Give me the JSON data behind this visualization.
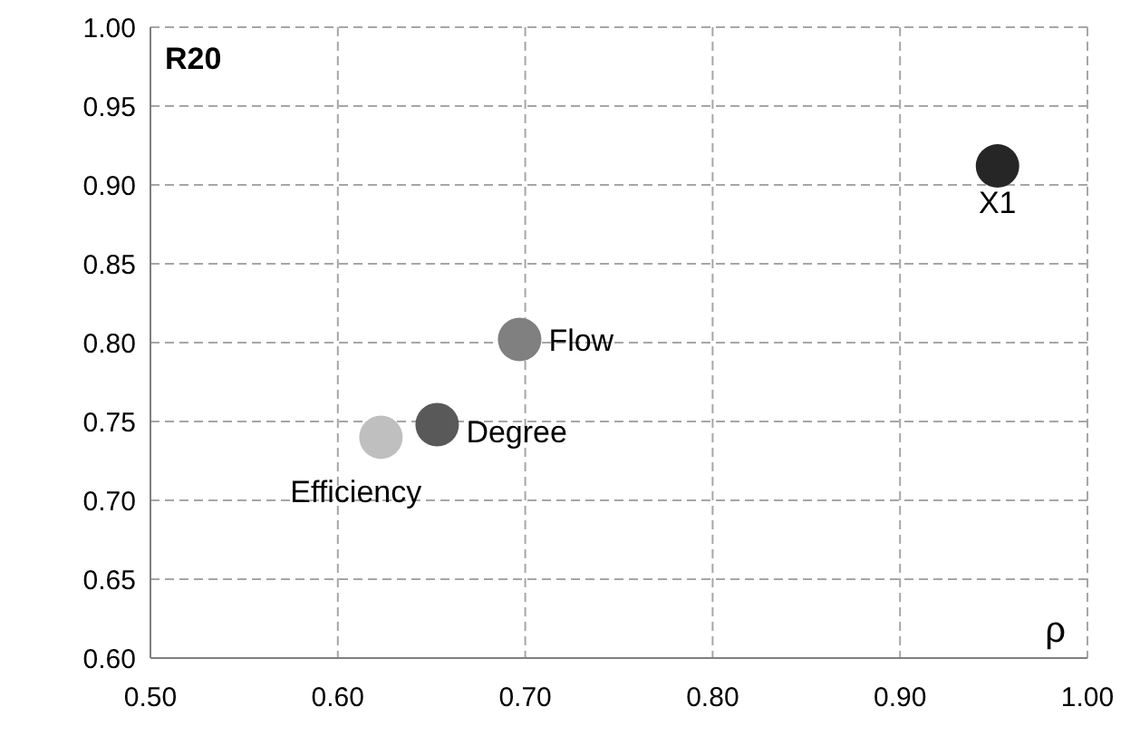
{
  "chart_data": {
    "type": "scatter",
    "title": "R20",
    "xlabel": "ρ",
    "xlim": [
      0.5,
      1.0
    ],
    "xticks": [
      {
        "value": 0.5,
        "label": "0.50"
      },
      {
        "value": 0.6,
        "label": "0.60"
      },
      {
        "value": 0.7,
        "label": "0.70"
      },
      {
        "value": 0.8,
        "label": "0.80"
      },
      {
        "value": 0.9,
        "label": "0.90"
      },
      {
        "value": 1.0,
        "label": "1.00"
      }
    ],
    "ylim": [
      0.6,
      1.0
    ],
    "yticks": [
      {
        "value": 0.6,
        "label": "0.60"
      },
      {
        "value": 0.65,
        "label": "0.65"
      },
      {
        "value": 0.7,
        "label": "0.70"
      },
      {
        "value": 0.75,
        "label": "0.75"
      },
      {
        "value": 0.8,
        "label": "0.80"
      },
      {
        "value": 0.85,
        "label": "0.85"
      },
      {
        "value": 0.9,
        "label": "0.90"
      },
      {
        "value": 0.95,
        "label": "0.95"
      },
      {
        "value": 1.0,
        "label": "1.00"
      }
    ],
    "grid": true,
    "marker": "circle",
    "legend": false,
    "series": [
      {
        "name": "X1",
        "color": "#262626",
        "x": [
          0.952
        ],
        "values": [
          0.912
        ]
      },
      {
        "name": "Flow",
        "color": "#808080",
        "x": [
          0.697
        ],
        "values": [
          0.802
        ]
      },
      {
        "name": "Degree",
        "color": "#595959",
        "x": [
          0.653
        ],
        "values": [
          0.748
        ]
      },
      {
        "name": "Efficiency",
        "color": "#bfbfbf",
        "x": [
          0.623
        ],
        "values": [
          0.74
        ]
      }
    ]
  }
}
